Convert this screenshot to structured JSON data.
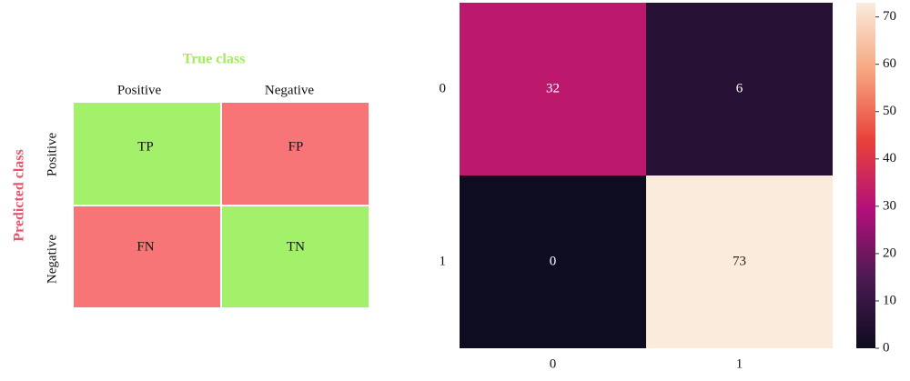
{
  "diagram": {
    "title": "True class",
    "y_title": "Predicted class",
    "columns": [
      "Positive",
      "Negative"
    ],
    "rows": [
      "Positive",
      "Negative"
    ],
    "cells": [
      [
        "TP",
        "FP"
      ],
      [
        "FN",
        "TN"
      ]
    ]
  },
  "chart_data": {
    "type": "heatmap",
    "x_categories": [
      "0",
      "1"
    ],
    "y_categories": [
      "0",
      "1"
    ],
    "values": [
      [
        32,
        6
      ],
      [
        0,
        73
      ]
    ],
    "vlim": [
      0,
      73
    ],
    "colorbar_ticks": [
      0,
      10,
      20,
      30,
      40,
      50,
      60,
      70
    ],
    "colormap": [
      "#0e0c20",
      "#4a1a52",
      "#b2107a",
      "#e8413a",
      "#f6a57e",
      "#faebdd"
    ]
  }
}
